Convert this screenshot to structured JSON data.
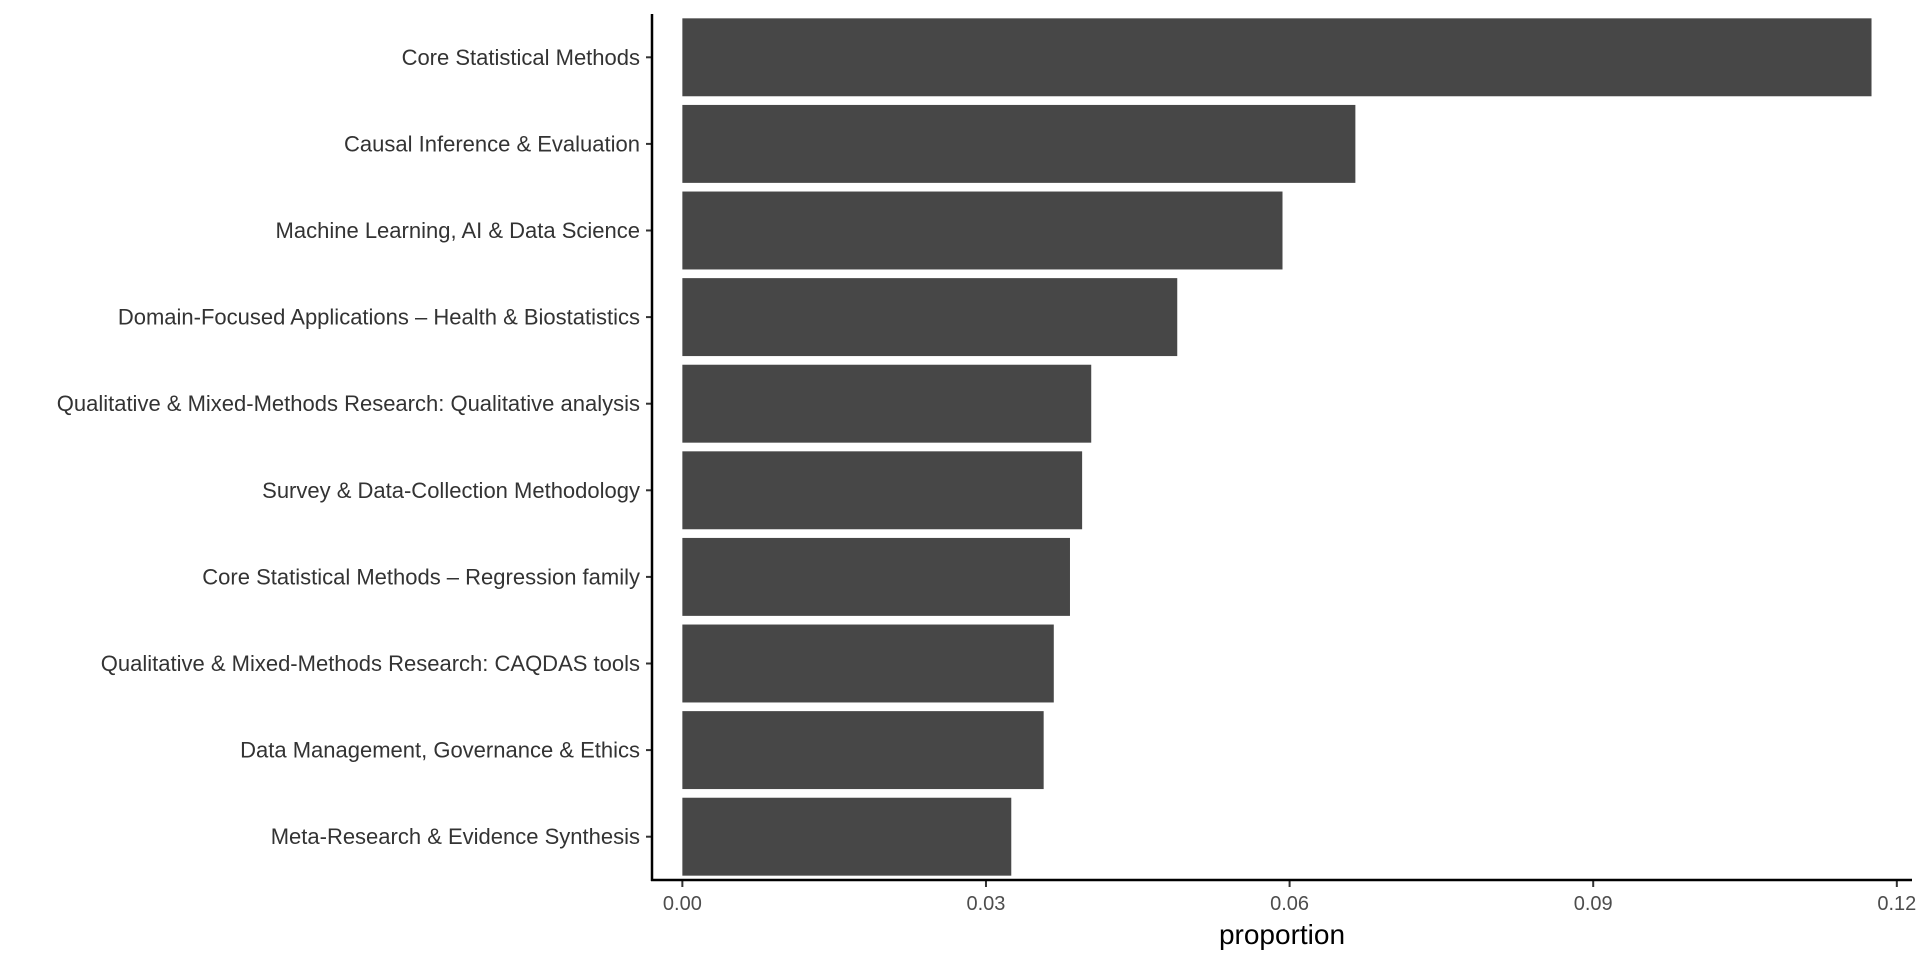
{
  "chart_data": {
    "type": "bar",
    "orientation": "horizontal",
    "title": "",
    "xlabel": "proportion",
    "ylabel": "",
    "categories": [
      "Core Statistical Methods",
      "Causal Inference & Evaluation",
      "Machine Learning, AI & Data Science",
      "Domain-Focused Applications – Health & Biostatistics",
      "Qualitative & Mixed-Methods Research: Qualitative analysis",
      "Survey & Data-Collection Methodology",
      "Core Statistical Methods – Regression family",
      "Qualitative & Mixed-Methods Research: CAQDAS tools",
      "Data Management, Governance & Ethics",
      "Meta-Research & Evidence Synthesis"
    ],
    "values": [
      0.1175,
      0.0665,
      0.0593,
      0.0489,
      0.0404,
      0.0395,
      0.0383,
      0.0367,
      0.0357,
      0.0325
    ],
    "xlim": [
      -0.003,
      0.1215
    ],
    "xticks": [
      0.0,
      0.03,
      0.06,
      0.09,
      0.12
    ],
    "xtick_labels": [
      "0.00",
      "0.03",
      "0.06",
      "0.09",
      "0.12"
    ],
    "bar_color": "#474747",
    "grid": false,
    "legend": "none"
  }
}
